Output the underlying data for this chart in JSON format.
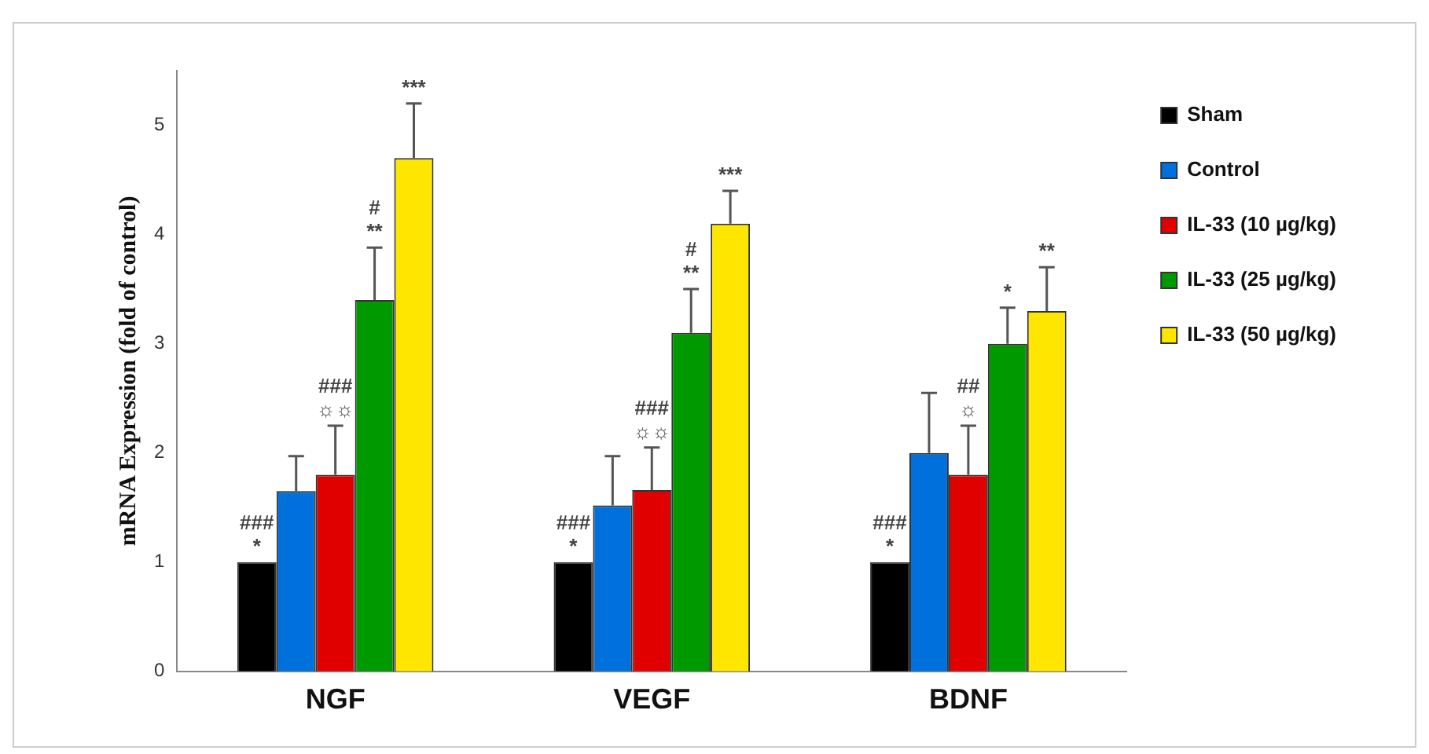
{
  "chart_data": {
    "type": "bar",
    "ylabel": "mRNA Expression (fold of control)",
    "categories": [
      "NGF",
      "VEGF",
      "BDNF"
    ],
    "ylim": [
      0,
      5.5
    ],
    "yticks": [
      0,
      1,
      2,
      3,
      4,
      5
    ],
    "grid": false,
    "legend": "top right",
    "series": [
      {
        "name": "Sham",
        "color": "#000000",
        "values": [
          1,
          1,
          1
        ],
        "value_labels": [
          "###\n*",
          "###\n*",
          "###\n*"
        ]
      },
      {
        "name": "Control",
        "color": "#0070dd",
        "values": [
          1.65,
          1.52,
          2.0
        ],
        "errors": [
          0.32,
          0.45,
          0.55
        ]
      },
      {
        "name": "IL-33 (10 µg/kg)",
        "color": "#e00000",
        "values": [
          1.8,
          1.66,
          1.8
        ],
        "errors": [
          0.45,
          0.39,
          0.45
        ],
        "value_labels": [
          "###\n☼☼",
          "###\n☼☼",
          "##\n☼"
        ]
      },
      {
        "name": "IL-33 (25 µg/kg)",
        "color": "#009900",
        "values": [
          3.4,
          3.1,
          3.0
        ],
        "errors": [
          0.48,
          0.4,
          0.33
        ],
        "value_labels": [
          "#\n**",
          "#\n**",
          "*"
        ]
      },
      {
        "name": "IL-33 (50 µg/kg)",
        "color": "#ffe600",
        "values": [
          4.7,
          4.1,
          3.3
        ],
        "errors": [
          0.5,
          0.3,
          0.4
        ],
        "value_labels": [
          "***",
          "***",
          "**"
        ]
      }
    ]
  }
}
